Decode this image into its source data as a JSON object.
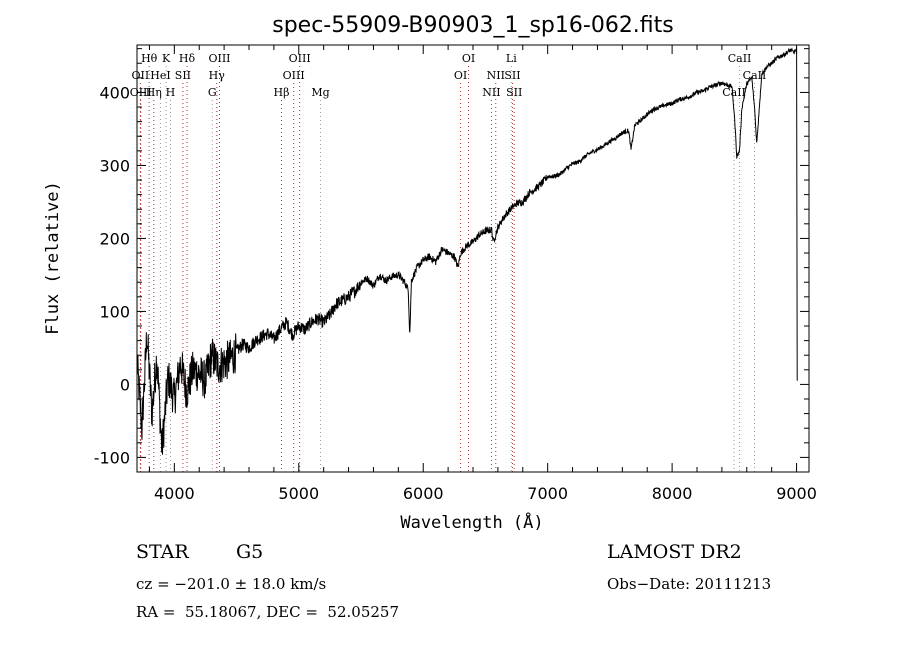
{
  "chart_data": {
    "type": "line",
    "title": "spec-55909-B90903_1_sp16-062.fits",
    "xlabel": "Wavelength (Å)",
    "ylabel": "Flux (relative)",
    "xlim": [
      3700,
      9100
    ],
    "ylim": [
      -120,
      465
    ],
    "x_ticks": [
      4000,
      5000,
      6000,
      7000,
      8000,
      9000
    ],
    "y_ticks": [
      -100,
      0,
      100,
      200,
      300,
      400
    ],
    "series": [
      {
        "x": [
          3700,
          3740,
          3780,
          3820,
          3860,
          3900,
          3950,
          4000,
          4050,
          4100,
          4150,
          4200,
          4250,
          4300,
          4350,
          4400,
          4450,
          4500,
          4550,
          4600,
          4650,
          4700,
          4750,
          4800,
          4850,
          4900,
          4950,
          5000,
          5050,
          5100,
          5150,
          5200,
          5250,
          5300,
          5350,
          5400,
          5450,
          5500,
          5550,
          5600,
          5650,
          5700,
          5750,
          5800,
          5850,
          5880,
          5892,
          5905,
          5950,
          6000,
          6050,
          6100,
          6150,
          6200,
          6250,
          6280,
          6300,
          6350,
          6400,
          6450,
          6500,
          6550,
          6563,
          6600,
          6650,
          6700,
          6750,
          6800,
          6850,
          6900,
          6950,
          7000,
          7050,
          7100,
          7150,
          7200,
          7250,
          7300,
          7350,
          7400,
          7450,
          7500,
          7550,
          7600,
          7650,
          7670,
          7700,
          7750,
          7800,
          7850,
          7900,
          7950,
          8000,
          8050,
          8100,
          8150,
          8200,
          8250,
          8300,
          8350,
          8400,
          8450,
          8480,
          8500,
          8520,
          8542,
          8560,
          8600,
          8640,
          8662,
          8680,
          8720,
          8760,
          8800,
          8850,
          8900,
          8950,
          8980,
          9000,
          9005
        ],
        "values": [
          30,
          -60,
          70,
          -40,
          40,
          -90,
          10,
          -20,
          30,
          -10,
          20,
          15,
          5,
          40,
          25,
          30,
          35,
          45,
          55,
          50,
          60,
          65,
          70,
          62,
          75,
          85,
          68,
          80,
          75,
          85,
          90,
          85,
          95,
          110,
          115,
          120,
          128,
          140,
          145,
          135,
          150,
          142,
          148,
          150,
          140,
          130,
          68,
          142,
          160,
          170,
          175,
          168,
          185,
          180,
          175,
          160,
          180,
          190,
          195,
          205,
          210,
          212,
          195,
          215,
          230,
          240,
          248,
          250,
          262,
          268,
          275,
          285,
          285,
          288,
          296,
          302,
          305,
          312,
          318,
          322,
          327,
          333,
          338,
          345,
          348,
          322,
          355,
          362,
          370,
          377,
          380,
          383,
          385,
          390,
          392,
          395,
          400,
          402,
          407,
          410,
          413,
          410,
          408,
          370,
          312,
          320,
          378,
          412,
          420,
          380,
          330,
          425,
          435,
          440,
          448,
          452,
          458,
          455,
          460,
          5
        ]
      }
    ],
    "spectral_lines": [
      {
        "label": "Hθ",
        "x": 3798,
        "row": 0
      },
      {
        "label": "OII",
        "x": 3727,
        "row": 1
      },
      {
        "label": "OIII",
        "x": 3730,
        "row": 2
      },
      {
        "label": "K",
        "x": 3934,
        "row": 0
      },
      {
        "label": "HeI",
        "x": 3889,
        "row": 1
      },
      {
        "label": "Hη",
        "x": 3835,
        "row": 2
      },
      {
        "label": "H",
        "x": 3969,
        "row": 2
      },
      {
        "label": "SII",
        "x": 4069,
        "row": 1
      },
      {
        "label": "Hδ",
        "x": 4102,
        "row": 0
      },
      {
        "label": "OIII",
        "x": 4363,
        "row": 0
      },
      {
        "label": "Hγ",
        "x": 4341,
        "row": 1
      },
      {
        "label": "G",
        "x": 4305,
        "row": 2
      },
      {
        "label": "Hβ",
        "x": 4861,
        "row": 2
      },
      {
        "label": "OIII",
        "x": 5007,
        "row": 0
      },
      {
        "label": "OIII",
        "x": 4959,
        "row": 1
      },
      {
        "label": "Mg",
        "x": 5175,
        "row": 2
      },
      {
        "label": "OI",
        "x": 6364,
        "row": 0
      },
      {
        "label": "OI",
        "x": 6300,
        "row": 1
      },
      {
        "label": "NII",
        "x": 6583,
        "row": 1
      },
      {
        "label": "NII",
        "x": 6548,
        "row": 2
      },
      {
        "label": "Li",
        "x": 6708,
        "row": 0
      },
      {
        "label": "SII",
        "x": 6717,
        "row": 1
      },
      {
        "label": "SII",
        "x": 6731,
        "row": 2
      },
      {
        "label": "CaII",
        "x": 8542,
        "row": 0
      },
      {
        "label": "CaII",
        "x": 8662,
        "row": 1
      },
      {
        "label": "CaII",
        "x": 8498,
        "row": 2
      }
    ]
  },
  "footer": {
    "object_type": "STAR",
    "subclass": "G5",
    "survey": "LAMOST DR2",
    "redshift": "cz = −201.0 ± 18.0 km/s",
    "obs_date": "Obs−Date: 20111213",
    "coords": "RA =  55.18067, DEC =  52.05257"
  },
  "colors": {
    "spectrum": "#000000",
    "emission_marker": "#b03030",
    "absorption_marker": "#9a9a9a"
  }
}
